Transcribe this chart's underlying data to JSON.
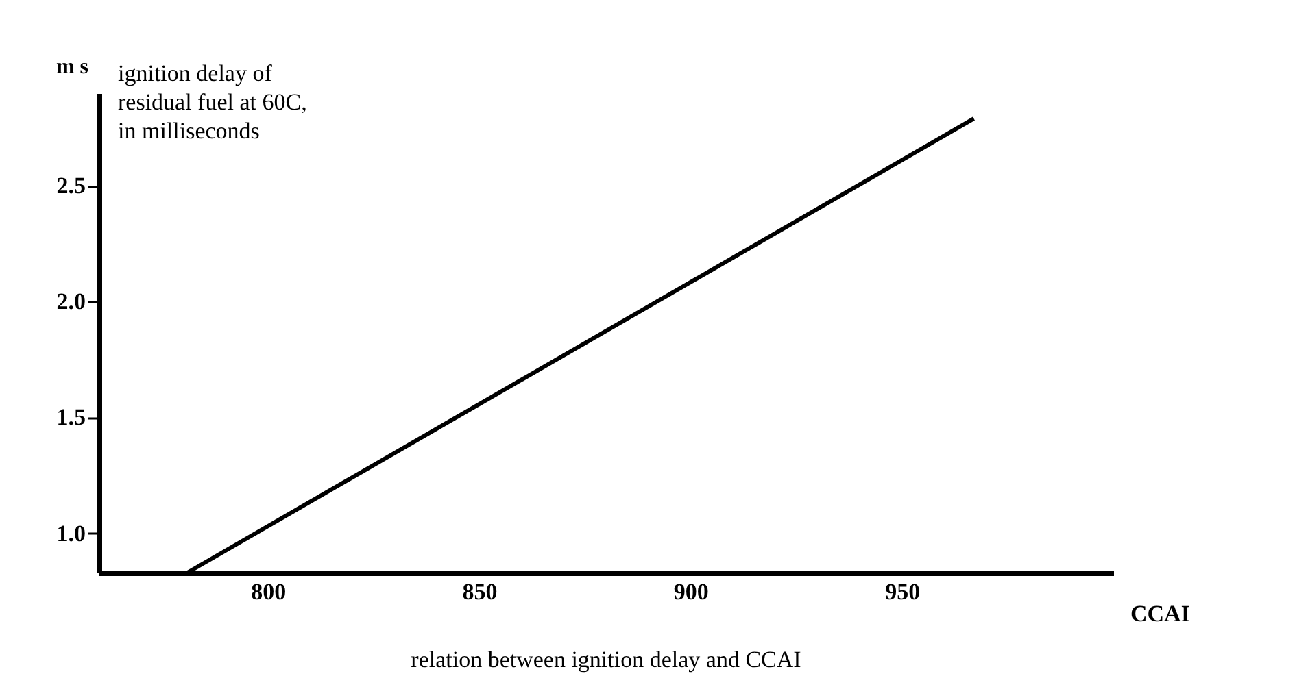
{
  "chart_data": {
    "type": "line",
    "title": "relation between ignition delay  and CCAI",
    "xlabel": "CCAI",
    "ylabel": "m s",
    "annotations": [
      "ignition delay of\nresidual fuel at 60C,\nin milliseconds"
    ],
    "x": [
      781,
      967
    ],
    "series": [
      {
        "color": "#000000",
        "values": [
          0.83,
          2.79
        ]
      }
    ],
    "xlim": [
      760,
      1000
    ],
    "xticks": [
      800,
      850,
      900,
      950
    ],
    "ylim": [
      0.83,
      2.9
    ],
    "yticks": [
      {
        "value": 1.0,
        "label": "1.0"
      },
      {
        "value": 1.5,
        "label": "1.5"
      },
      {
        "value": 2.0,
        "label": "2.0"
      },
      {
        "value": 2.5,
        "label": "2.5"
      }
    ],
    "grid": false,
    "marker": "none",
    "line_style": "solid"
  }
}
